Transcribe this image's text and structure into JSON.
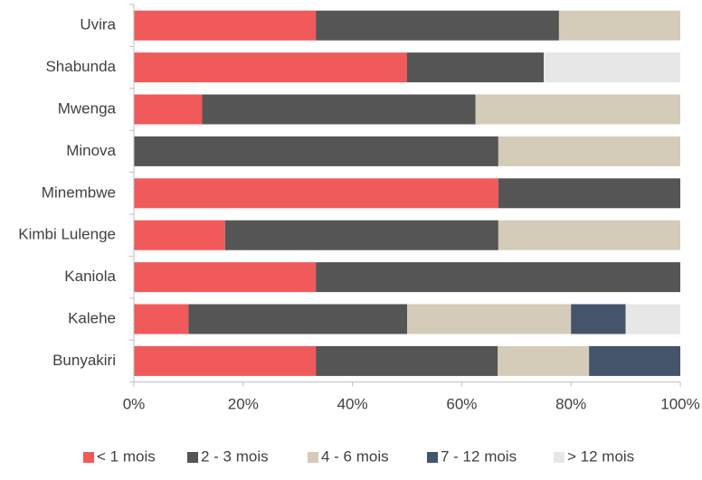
{
  "chart_data": {
    "type": "bar",
    "orientation": "horizontal",
    "stacked": "percent",
    "categories": [
      "Uvira",
      "Shabunda",
      "Mwenga",
      "Minova",
      "Minembwe",
      "Kimbi Lulenge",
      "Kaniola",
      "Kalehe",
      "Bunyakiri"
    ],
    "series": [
      {
        "name": "< 1 mois",
        "color": "#f05a5a",
        "values": [
          33.3,
          50,
          12.5,
          0,
          66.7,
          16.7,
          33.3,
          10,
          33.3
        ]
      },
      {
        "name": "2 - 3 mois",
        "color": "#555555",
        "values": [
          44.5,
          25,
          50,
          66.7,
          33.3,
          50,
          66.7,
          40,
          33.3
        ]
      },
      {
        "name": "4 - 6 mois",
        "color": "#d4ccb8",
        "values": [
          22.2,
          0,
          37.5,
          33.3,
          0,
          33.3,
          0,
          30,
          16.7
        ]
      },
      {
        "name": "7 - 12 mois",
        "color": "#44546a",
        "values": [
          0,
          0,
          0,
          0,
          0,
          0,
          0,
          10,
          16.7
        ]
      },
      {
        "name": "> 12 mois",
        "color": "#e7e7e7",
        "values": [
          0,
          25,
          0,
          0,
          0,
          0,
          0,
          10,
          0
        ]
      }
    ],
    "xlim": [
      0,
      100
    ],
    "x_ticks": [
      "0%",
      "20%",
      "40%",
      "60%",
      "80%",
      "100%"
    ],
    "grid": false,
    "legend_position": "bottom"
  }
}
